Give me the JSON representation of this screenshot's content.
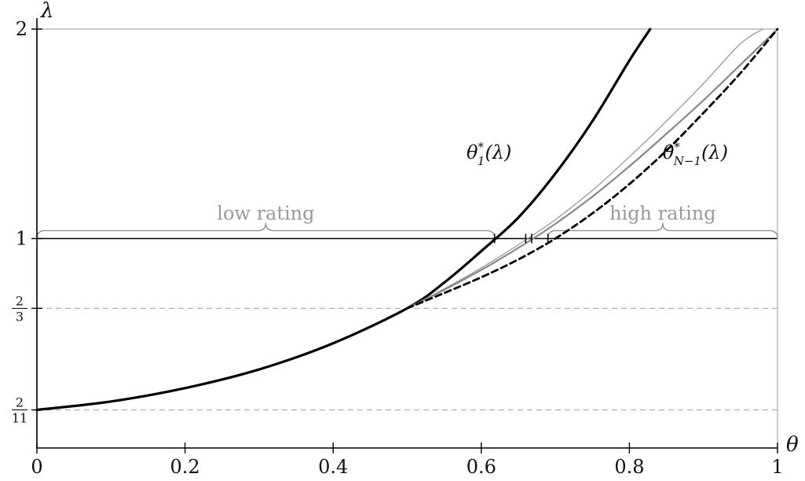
{
  "chart_data": {
    "type": "line",
    "xlabel": "θ",
    "ylabel": "λ",
    "xlim": [
      0,
      1
    ],
    "ylim": [
      0,
      2
    ],
    "x_ticks": [
      "0",
      "0.2",
      "0.4",
      "0.6",
      "0.8",
      "1"
    ],
    "y_ticks": [
      {
        "value": 0.1818,
        "num": "2",
        "den": "11"
      },
      {
        "value": 0.6667,
        "num": "2",
        "den": "3"
      },
      {
        "value": 1,
        "label": "1"
      },
      {
        "value": 2,
        "label": "2"
      }
    ],
    "guide_lines": [
      {
        "y": 0.1818,
        "style": "dashed",
        "color": "#aaaaaa"
      },
      {
        "y": 0.6667,
        "style": "dashed",
        "color": "#aaaaaa"
      },
      {
        "y": 1,
        "style": "solid",
        "color": "#000000"
      },
      {
        "y": 2,
        "style": "solid",
        "color": "#aaaaaa"
      },
      {
        "x": 1,
        "style": "solid",
        "color": "#aaaaaa"
      }
    ],
    "series": [
      {
        "style": "solid-thick",
        "color": "#000000",
        "x": [
          0,
          0.1,
          0.2,
          0.3,
          0.4,
          0.5,
          0.55,
          0.6,
          0.65,
          0.7,
          0.75,
          0.8,
          0.828
        ],
        "y": [
          0.182,
          0.222,
          0.286,
          0.375,
          0.5,
          0.667,
          0.79,
          0.94,
          1.1,
          1.31,
          1.56,
          1.85,
          2.0
        ]
      },
      {
        "style": "solid-thin",
        "color": "#999999",
        "x": [
          0.5,
          0.55,
          0.6,
          0.65,
          0.7,
          0.75,
          0.8,
          0.85,
          0.9,
          0.95,
          0.98
        ],
        "y": [
          0.667,
          0.76,
          0.86,
          0.97,
          1.09,
          1.23,
          1.39,
          1.56,
          1.74,
          1.93,
          2.0
        ]
      },
      {
        "style": "solid-medium",
        "color": "#888888",
        "x": [
          0.5,
          0.55,
          0.6,
          0.65,
          0.7,
          0.75,
          0.8,
          0.85,
          0.9,
          0.95,
          1.0
        ],
        "y": [
          0.667,
          0.755,
          0.85,
          0.955,
          1.07,
          1.2,
          1.345,
          1.5,
          1.66,
          1.83,
          2.0
        ]
      },
      {
        "style": "dashed",
        "color": "#000000",
        "x": [
          0.5,
          0.55,
          0.6,
          0.65,
          0.7,
          0.75,
          0.8,
          0.85,
          0.9,
          0.95,
          1.0
        ],
        "y": [
          0.667,
          0.74,
          0.815,
          0.9,
          1.0,
          1.12,
          1.26,
          1.42,
          1.6,
          1.79,
          2.0
        ]
      }
    ],
    "markers": [
      {
        "x": 0.618,
        "y": 1
      },
      {
        "x": 0.66,
        "y": 1
      },
      {
        "x": 0.668,
        "y": 1
      },
      {
        "x": 0.69,
        "y": 1
      }
    ],
    "annotations": [
      {
        "base": "θ",
        "sup": "*",
        "sub": "1",
        "tail": "(λ)",
        "x": 0.58,
        "y": 1.38
      },
      {
        "base": "θ",
        "sup": "*",
        "sub": "N−1",
        "tail": "(λ)",
        "x": 0.845,
        "y": 1.38
      }
    ],
    "regions": [
      {
        "label": "low rating",
        "x_from": 0,
        "x_to": 0.618,
        "y": 1
      },
      {
        "label": "high rating",
        "x_from": 0.69,
        "x_to": 1,
        "y": 1
      }
    ]
  }
}
